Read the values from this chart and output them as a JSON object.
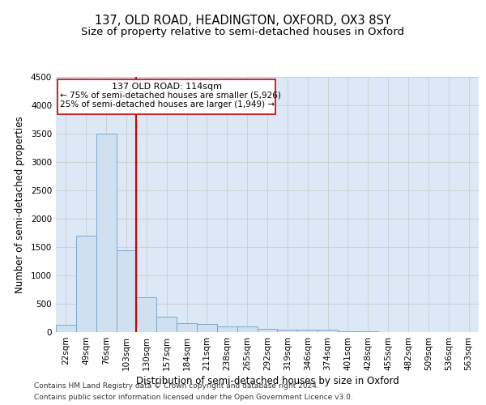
{
  "title1": "137, OLD ROAD, HEADINGTON, OXFORD, OX3 8SY",
  "title2": "Size of property relative to semi-detached houses in Oxford",
  "xlabel": "Distribution of semi-detached houses by size in Oxford",
  "ylabel": "Number of semi-detached properties",
  "footnote1": "Contains HM Land Registry data © Crown copyright and database right 2024.",
  "footnote2": "Contains public sector information licensed under the Open Government Licence v3.0.",
  "annotation_title": "137 OLD ROAD: 114sqm",
  "annotation_line1": "← 75% of semi-detached houses are smaller (5,926)",
  "annotation_line2": "25% of semi-detached houses are larger (1,949) →",
  "categories": [
    "22sqm",
    "49sqm",
    "76sqm",
    "103sqm",
    "130sqm",
    "157sqm",
    "184sqm",
    "211sqm",
    "238sqm",
    "265sqm",
    "292sqm",
    "319sqm",
    "346sqm",
    "374sqm",
    "401sqm",
    "428sqm",
    "455sqm",
    "482sqm",
    "509sqm",
    "536sqm",
    "563sqm"
  ],
  "values": [
    130,
    1700,
    3500,
    1450,
    620,
    270,
    160,
    150,
    95,
    95,
    60,
    50,
    45,
    40,
    12,
    8,
    6,
    4,
    3,
    2,
    2
  ],
  "bar_color": "#cfe0f0",
  "bar_edge_color": "#6ca0cc",
  "vline_color": "#cc0000",
  "vline_x": 3.5,
  "box_color": "#cc0000",
  "ylim": [
    0,
    4500
  ],
  "yticks": [
    0,
    500,
    1000,
    1500,
    2000,
    2500,
    3000,
    3500,
    4000,
    4500
  ],
  "grid_color": "#cccccc",
  "plot_bg_color": "#dce8f5",
  "fig_bg_color": "#ffffff",
  "title_fontsize": 10.5,
  "subtitle_fontsize": 9.5,
  "axis_label_fontsize": 8.5,
  "tick_fontsize": 7.5,
  "annotation_fontsize": 7.5,
  "footnote_fontsize": 6.5
}
